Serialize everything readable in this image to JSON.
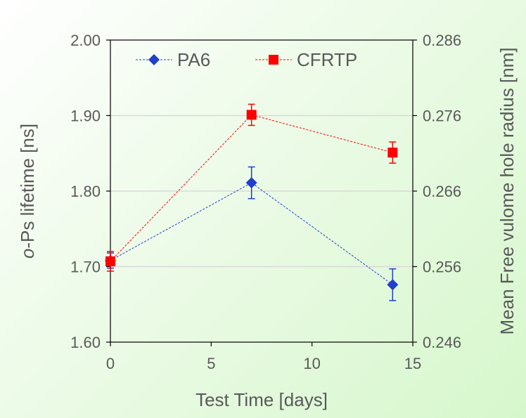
{
  "chart_data": {
    "type": "line",
    "x_axis": {
      "label": "Test Time [days]",
      "range": [
        0,
        15
      ],
      "ticks": [
        0,
        5,
        10,
        15
      ],
      "tick_labels": [
        "0",
        "5",
        "10",
        "15"
      ]
    },
    "y_axis_left": {
      "label_italic_part": "o",
      "label_rest": "-Ps lifetime [ns]",
      "range": [
        1.6,
        2.0
      ],
      "ticks": [
        1.6,
        1.7,
        1.8,
        1.9,
        2.0
      ],
      "tick_labels": [
        "1.60",
        "1.70",
        "1.80",
        "1.90",
        "2.00"
      ]
    },
    "y_axis_right": {
      "label": "Mean Free vulome hole radius [nm]",
      "range": [
        0.246,
        0.286
      ],
      "tick_labels": [
        "0.246",
        "0.256",
        "0.266",
        "0.276",
        "0.286"
      ]
    },
    "grid": "horizontal",
    "legend_position": "top-left",
    "series": [
      {
        "name": "PA6",
        "marker": "diamond",
        "color": "#1f3fcc",
        "x": [
          0,
          7,
          14
        ],
        "y": [
          1.708,
          1.811,
          1.676
        ],
        "error": [
          0.01,
          0.021,
          0.021
        ]
      },
      {
        "name": "CFRTP",
        "marker": "square",
        "color": "#ff0000",
        "x": [
          0,
          7,
          14
        ],
        "y": [
          1.707,
          1.901,
          1.851
        ],
        "error": [
          0.013,
          0.014,
          0.014
        ]
      }
    ]
  }
}
